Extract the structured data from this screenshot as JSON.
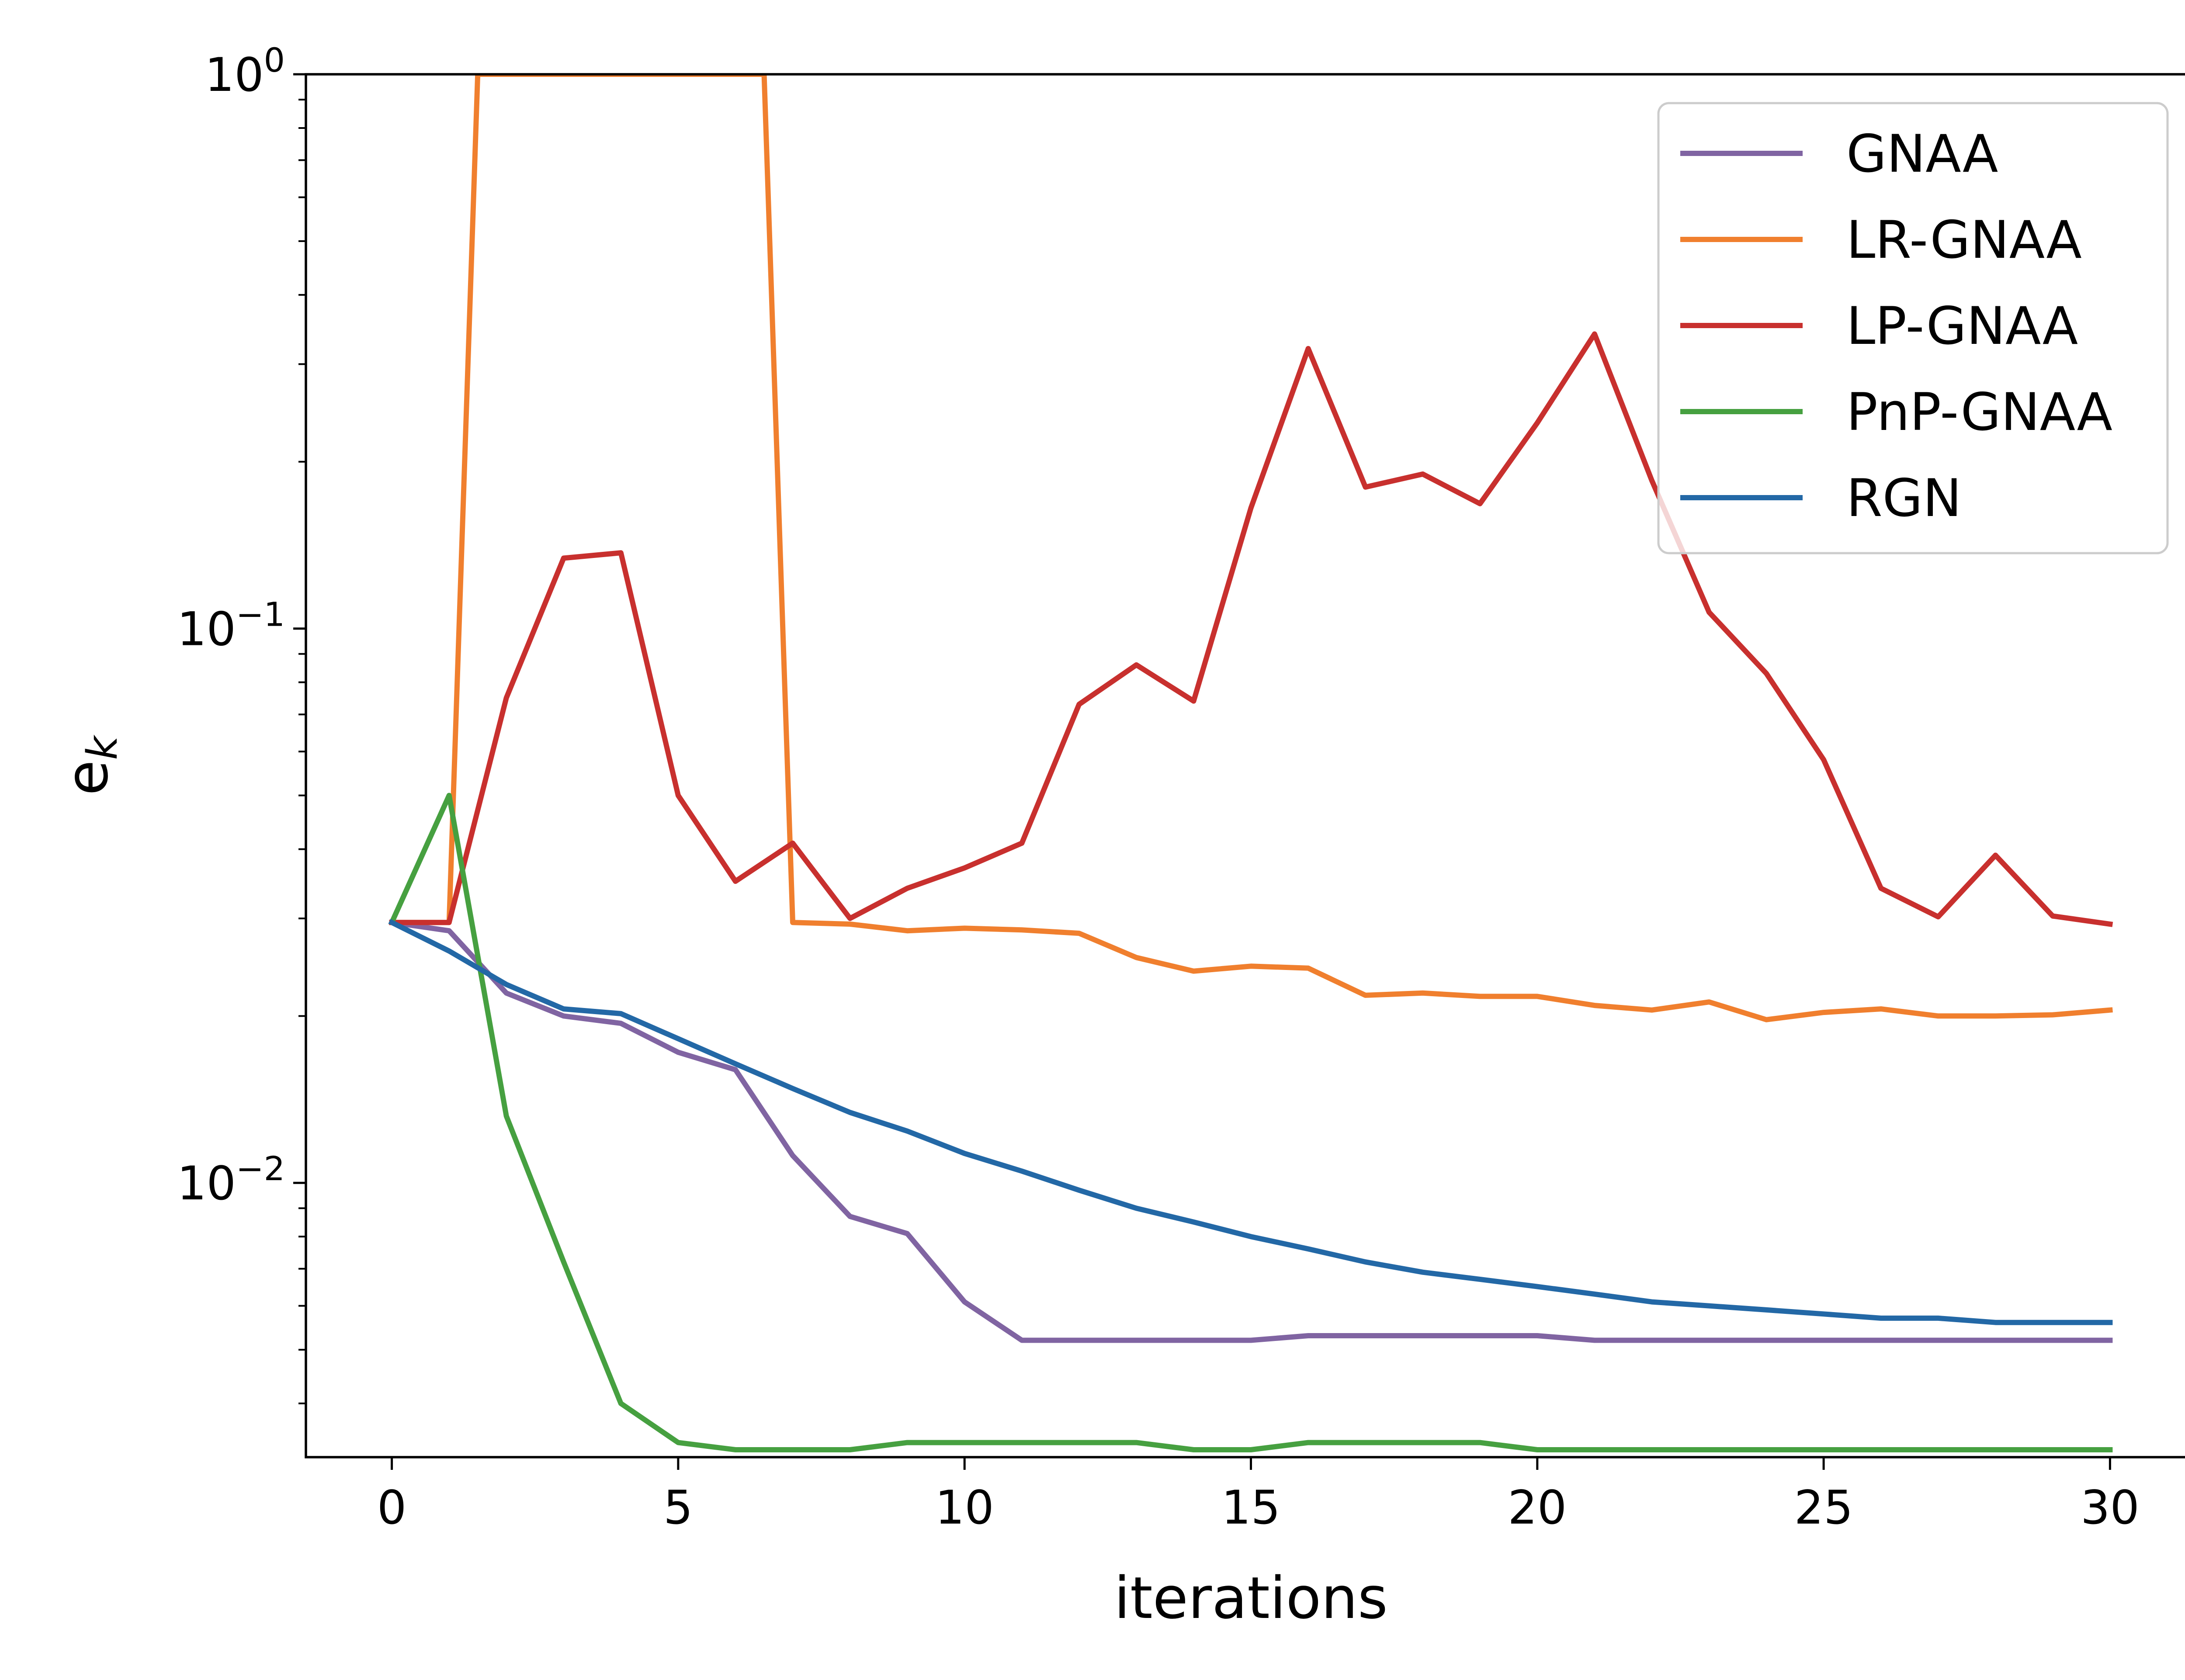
{
  "chart_data": {
    "type": "line",
    "title": "",
    "xlabel": "iterations",
    "ylabel": "e",
    "ylabel_subscript": "k",
    "yscale": "log",
    "xlim": [
      -1.5,
      31.5
    ],
    "ylim": [
      0.0032,
      1.0
    ],
    "grid": false,
    "legend_position": "top-right",
    "x_ticks": [
      0,
      5,
      10,
      15,
      20,
      25,
      30
    ],
    "x_tick_labels": [
      "0",
      "5",
      "10",
      "15",
      "20",
      "25",
      "30"
    ],
    "y_ticks": [
      {
        "value": 1.0,
        "base": "10",
        "exp": "0"
      },
      {
        "value": 0.1,
        "base": "10",
        "exp": "−1"
      },
      {
        "value": 0.01,
        "base": "10",
        "exp": "−2"
      }
    ],
    "x": [
      0,
      1,
      2,
      3,
      4,
      5,
      6,
      7,
      8,
      9,
      10,
      11,
      12,
      13,
      14,
      15,
      16,
      17,
      18,
      19,
      20,
      21,
      22,
      23,
      24,
      25,
      26,
      27,
      28,
      29,
      30
    ],
    "series": [
      {
        "name": "GNAA",
        "color": "#8064a2",
        "values": [
          0.0295,
          0.0285,
          0.022,
          0.02,
          0.0194,
          0.0172,
          0.016,
          0.0112,
          0.0087,
          0.0081,
          0.0061,
          0.0052,
          0.0052,
          0.0052,
          0.0052,
          0.0052,
          0.0053,
          0.0053,
          0.0053,
          0.0053,
          0.0053,
          0.0052,
          0.0052,
          0.0052,
          0.0052,
          0.0052,
          0.0052,
          0.0052,
          0.0052,
          0.0052,
          0.0052
        ]
      },
      {
        "name": "LR-GNAA",
        "color": "#f07f2e",
        "x": [
          0,
          1,
          1.5,
          6.5,
          7,
          8,
          9,
          10,
          11,
          12,
          13,
          14,
          15,
          16,
          17,
          18,
          19,
          20,
          21,
          22,
          23,
          24,
          25,
          26,
          27,
          28,
          29,
          30
        ],
        "values": [
          0.0295,
          0.0295,
          1.0,
          1.0,
          0.0295,
          0.0293,
          0.0285,
          0.0288,
          0.0286,
          0.0282,
          0.0255,
          0.0241,
          0.0246,
          0.0244,
          0.0218,
          0.022,
          0.0217,
          0.0217,
          0.0209,
          0.0205,
          0.0212,
          0.0197,
          0.0203,
          0.0206,
          0.02,
          0.02,
          0.0201,
          0.0205
        ]
      },
      {
        "name": "LP-GNAA",
        "color": "#c8302e",
        "values": [
          0.0295,
          0.0295,
          0.075,
          0.134,
          0.137,
          0.05,
          0.035,
          0.041,
          0.03,
          0.034,
          0.037,
          0.041,
          0.073,
          0.086,
          0.074,
          0.165,
          0.32,
          0.18,
          0.19,
          0.168,
          0.235,
          0.34,
          0.185,
          0.107,
          0.083,
          0.058,
          0.034,
          0.0302,
          0.039,
          0.0303,
          0.0293
        ]
      },
      {
        "name": "PnP-GNAA",
        "color": "#46a040",
        "values": [
          0.0295,
          0.05,
          0.0132,
          0.0072,
          0.004,
          0.0034,
          0.0033,
          0.0033,
          0.0033,
          0.0034,
          0.0034,
          0.0034,
          0.0034,
          0.0034,
          0.0033,
          0.0033,
          0.0034,
          0.0034,
          0.0034,
          0.0034,
          0.0033,
          0.0033,
          0.0033,
          0.0033,
          0.0033,
          0.0033,
          0.0033,
          0.0033,
          0.0033,
          0.0033,
          0.0033
        ]
      },
      {
        "name": "RGN",
        "color": "#2368a6",
        "values": [
          0.0295,
          0.0262,
          0.0228,
          0.0206,
          0.0202,
          0.0182,
          0.0164,
          0.0148,
          0.0134,
          0.0124,
          0.0113,
          0.0105,
          0.0097,
          0.009,
          0.0085,
          0.008,
          0.0076,
          0.0072,
          0.0069,
          0.0067,
          0.0065,
          0.0063,
          0.0061,
          0.006,
          0.0059,
          0.0058,
          0.0057,
          0.0057,
          0.0056,
          0.0056,
          0.0056
        ]
      }
    ]
  }
}
